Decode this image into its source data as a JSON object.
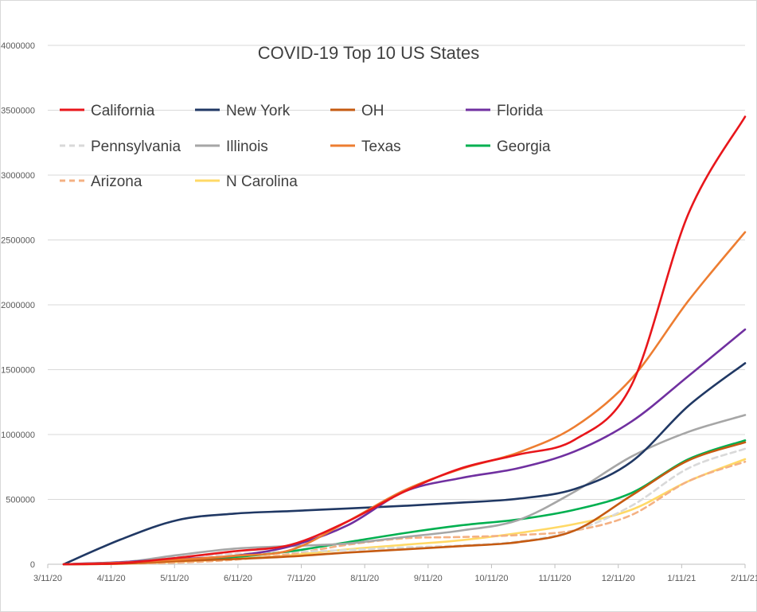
{
  "chart_data": {
    "type": "line",
    "title": "COVID-19 Top 10 US States",
    "xlabel": "",
    "ylabel": "",
    "ylim": [
      0,
      4000000
    ],
    "yticks": [
      0,
      500000,
      1000000,
      1500000,
      2000000,
      2500000,
      3000000,
      3500000,
      4000000
    ],
    "xticks": [
      "3/11/20",
      "4/11/20",
      "5/11/20",
      "6/11/20",
      "7/11/20",
      "8/11/20",
      "9/11/20",
      "10/11/20",
      "11/11/20",
      "12/11/20",
      "1/11/21",
      "2/11/21"
    ],
    "grid": true,
    "legend_position": "top",
    "series": [
      {
        "name": "California",
        "color": "#e8161b",
        "dash": false,
        "values": [
          0,
          8000,
          50000,
          100000,
          150000,
          330000,
          560000,
          740000,
          845000,
          960000,
          1380000,
          2700000,
          3450000
        ]
      },
      {
        "name": "New York",
        "color": "#203864",
        "dash": false,
        "values": [
          0,
          190000,
          340000,
          390000,
          410000,
          430000,
          450000,
          475000,
          505000,
          580000,
          790000,
          1220000,
          1550000
        ]
      },
      {
        "name": "OH",
        "color": "#c55a11",
        "dash": false,
        "values": [
          0,
          4000,
          25000,
          40000,
          60000,
          90000,
          115000,
          140000,
          170000,
          260000,
          530000,
          800000,
          940000
        ]
      },
      {
        "name": "Florida",
        "color": "#7030a0",
        "dash": false,
        "values": [
          0,
          16000,
          40000,
          65000,
          140000,
          300000,
          560000,
          665000,
          740000,
          870000,
          1100000,
          1450000,
          1810000
        ]
      },
      {
        "name": "Pennsylvania",
        "color": "#d9d9d9",
        "dash": true,
        "values": [
          0,
          18000,
          55000,
          80000,
          95000,
          110000,
          130000,
          145000,
          175000,
          260000,
          450000,
          740000,
          890000
        ]
      },
      {
        "name": "Illinois",
        "color": "#a6a6a6",
        "dash": false,
        "values": [
          0,
          12000,
          70000,
          120000,
          140000,
          160000,
          210000,
          260000,
          340000,
          560000,
          830000,
          1020000,
          1150000
        ]
      },
      {
        "name": "Texas",
        "color": "#ed7d31",
        "dash": false,
        "values": [
          0,
          12000,
          35000,
          65000,
          110000,
          330000,
          570000,
          735000,
          860000,
          1060000,
          1430000,
          2030000,
          2560000
        ]
      },
      {
        "name": "Georgia",
        "color": "#00b050",
        "dash": false,
        "values": [
          0,
          12000,
          35000,
          55000,
          100000,
          170000,
          240000,
          300000,
          345000,
          420000,
          550000,
          810000,
          955000
        ]
      },
      {
        "name": "Arizona",
        "color": "#f4b183",
        "dash": true,
        "values": [
          0,
          4000,
          12000,
          35000,
          80000,
          150000,
          200000,
          210000,
          225000,
          260000,
          380000,
          640000,
          790000
        ]
      },
      {
        "name": "N Carolina",
        "color": "#ffd966",
        "dash": false,
        "values": [
          0,
          4000,
          18000,
          40000,
          70000,
          115000,
          150000,
          185000,
          240000,
          310000,
          420000,
          640000,
          810000
        ]
      }
    ]
  }
}
